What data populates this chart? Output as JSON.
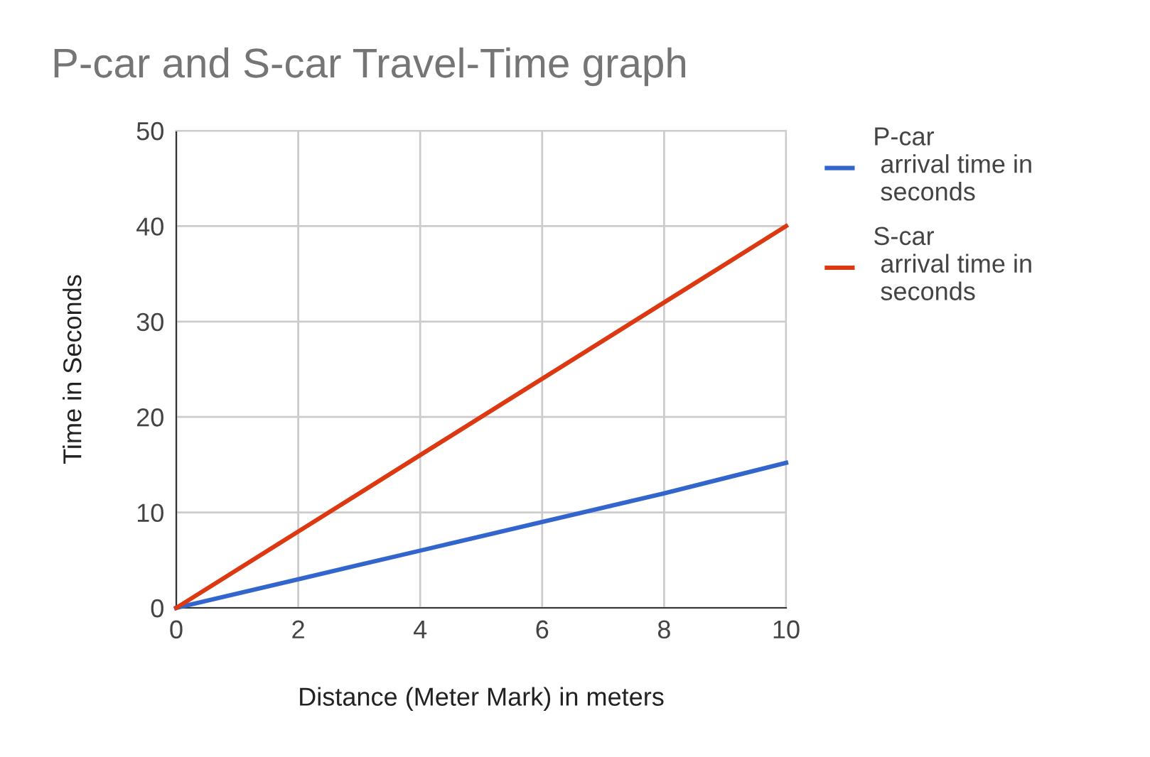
{
  "chart_data": {
    "type": "line",
    "title": "P-car and S-car Travel-Time graph",
    "xlabel": "Distance (Meter Mark) in meters",
    "ylabel": "Time in Seconds",
    "x": [
      0,
      2,
      4,
      6,
      8,
      10
    ],
    "series": [
      {
        "name": "P-car\n arrival time in\n seconds",
        "color": "#3366cc",
        "values": [
          0,
          3,
          6,
          9,
          12,
          15.2
        ]
      },
      {
        "name": "S-car\n arrival time in\n seconds",
        "color": "#dc3912",
        "values": [
          0,
          8,
          16,
          24,
          32,
          40
        ]
      }
    ],
    "xlim": [
      0,
      10
    ],
    "xticks": [
      0,
      2,
      4,
      6,
      8,
      10
    ],
    "ylim": [
      0,
      50
    ],
    "yticks": [
      0,
      10,
      20,
      30,
      40,
      50
    ],
    "grid": true,
    "legend": "top right",
    "marker": "none",
    "line_style": "solid"
  }
}
